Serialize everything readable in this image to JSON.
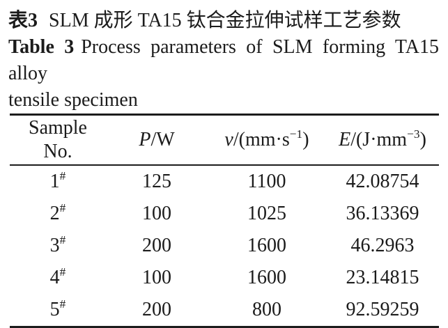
{
  "caption_cn": {
    "label": "表3",
    "text": "SLM 成形 TA15 钛合金拉伸试样工艺参数"
  },
  "caption_en": {
    "label": "Table 3",
    "text": "Process parameters of SLM forming TA15 alloy",
    "text_cont": "tensile specimen"
  },
  "table": {
    "headers": {
      "sample_line1": "Sample",
      "sample_line2": "No.",
      "power": {
        "symbol": "P",
        "unit": "/W"
      },
      "speed": {
        "symbol": "v",
        "unit_pre": "/(mm·s",
        "sup": "−1",
        "unit_post": ")"
      },
      "energy": {
        "symbol": "E",
        "unit_pre": "/(J·mm",
        "sup": "−3",
        "unit_post": ")"
      }
    },
    "rows": [
      {
        "sample": "1",
        "sample_sup": "#",
        "power_w": "125",
        "speed_mm_s": "1100",
        "energy_j_mm3": "42.08754"
      },
      {
        "sample": "2",
        "sample_sup": "#",
        "power_w": "100",
        "speed_mm_s": "1025",
        "energy_j_mm3": "36.13369"
      },
      {
        "sample": "3",
        "sample_sup": "#",
        "power_w": "200",
        "speed_mm_s": "1600",
        "energy_j_mm3": "46.2963"
      },
      {
        "sample": "4",
        "sample_sup": "#",
        "power_w": "100",
        "speed_mm_s": "1600",
        "energy_j_mm3": "23.14815"
      },
      {
        "sample": "5",
        "sample_sup": "#",
        "power_w": "200",
        "speed_mm_s": "800",
        "energy_j_mm3": "92.59259"
      }
    ]
  },
  "colors": {
    "text": "#1b1b1b",
    "rule": "#1c1c1c",
    "background": "#ffffff"
  }
}
